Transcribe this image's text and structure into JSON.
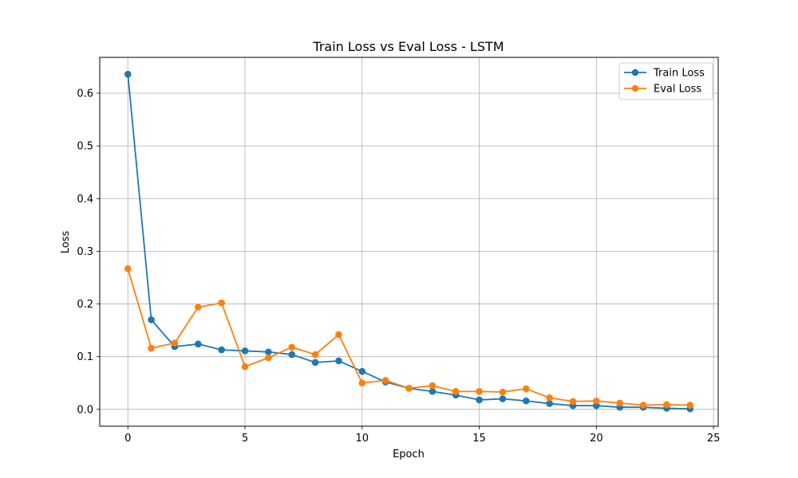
{
  "chart_data": {
    "type": "line",
    "title": "Train Loss vs Eval Loss - LSTM",
    "xlabel": "Epoch",
    "ylabel": "Loss",
    "xlim": [
      -1.2,
      25.2
    ],
    "ylim": [
      -0.032,
      0.668
    ],
    "xticks": [
      0,
      5,
      10,
      15,
      20,
      25
    ],
    "xtick_labels": [
      "0",
      "5",
      "10",
      "15",
      "20",
      "25"
    ],
    "yticks": [
      0.0,
      0.1,
      0.2,
      0.3,
      0.4,
      0.5,
      0.6
    ],
    "ytick_labels": [
      "0.0",
      "0.1",
      "0.2",
      "0.3",
      "0.4",
      "0.5",
      "0.6"
    ],
    "grid": true,
    "legend_position": "top-right",
    "x": [
      0,
      1,
      2,
      3,
      4,
      5,
      6,
      7,
      8,
      9,
      10,
      11,
      12,
      13,
      14,
      15,
      16,
      17,
      18,
      19,
      20,
      21,
      22,
      23,
      24
    ],
    "series": [
      {
        "name": "Train Loss",
        "color": "#1f77b4",
        "marker": "circle",
        "values": [
          0.636,
          0.17,
          0.119,
          0.124,
          0.113,
          0.111,
          0.109,
          0.104,
          0.089,
          0.092,
          0.072,
          0.052,
          0.04,
          0.034,
          0.027,
          0.018,
          0.02,
          0.016,
          0.011,
          0.007,
          0.007,
          0.004,
          0.004,
          0.002,
          0.001
        ]
      },
      {
        "name": "Eval Loss",
        "color": "#ff7f0e",
        "marker": "circle",
        "values": [
          0.267,
          0.116,
          0.126,
          0.194,
          0.202,
          0.081,
          0.098,
          0.118,
          0.104,
          0.142,
          0.05,
          0.055,
          0.04,
          0.045,
          0.034,
          0.034,
          0.033,
          0.039,
          0.022,
          0.015,
          0.016,
          0.012,
          0.008,
          0.009,
          0.008
        ]
      }
    ]
  }
}
